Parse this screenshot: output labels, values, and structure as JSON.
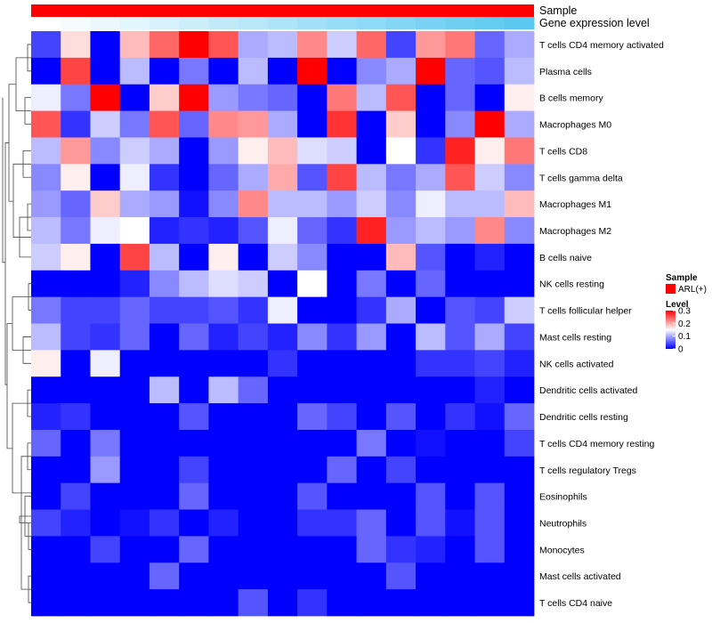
{
  "chart_data": {
    "type": "heatmap",
    "annotation_rows": [
      {
        "label": "Sample",
        "levels": [
          "ARL(+)"
        ],
        "colors": [
          "#ff0000"
        ]
      },
      {
        "label": "Gene expression level",
        "gradient": [
          "#ffffff",
          "#5ac8f0"
        ]
      }
    ],
    "rows": [
      "T cells CD4 memory activated",
      "Plasma cells",
      "B cells memory",
      "Macrophages M0",
      "T cells CD8",
      "T cells gamma delta",
      "Macrophages M1",
      "Macrophages M2",
      "B cells naive",
      "NK cells resting",
      "T cells follicular helper",
      "Mast cells resting",
      "NK cells activated",
      "Dendritic cells activated",
      "Dendritic cells resting",
      "T cells CD4 memory resting",
      "T cells regulatory  Tregs",
      "Eosinophils",
      "Neutrophils",
      "Monocytes",
      "Mast cells activated",
      "T cells CD4 naive"
    ],
    "n_columns": 17,
    "values": [
      [
        0.04,
        0.17,
        0.0,
        0.19,
        0.24,
        0.3,
        0.25,
        0.1,
        0.11,
        0.22,
        0.12,
        0.24,
        0.04,
        0.21,
        0.23,
        0.06,
        0.1
      ],
      [
        0.0,
        0.26,
        0.0,
        0.11,
        0.0,
        0.07,
        0.0,
        0.11,
        0.0,
        0.3,
        0.0,
        0.08,
        0.1,
        0.3,
        0.06,
        0.05,
        0.11
      ],
      [
        0.14,
        0.07,
        0.3,
        0.0,
        0.18,
        0.3,
        0.09,
        0.07,
        0.06,
        0.0,
        0.23,
        0.11,
        0.25,
        0.0,
        0.06,
        0.0,
        0.16
      ],
      [
        0.25,
        0.03,
        0.12,
        0.07,
        0.25,
        0.06,
        0.22,
        0.21,
        0.1,
        0.0,
        0.27,
        0.0,
        0.18,
        0.0,
        0.08,
        0.3,
        0.1
      ],
      [
        0.11,
        0.21,
        0.08,
        0.12,
        0.1,
        0.0,
        0.09,
        0.16,
        0.19,
        0.13,
        0.12,
        0.0,
        0.15,
        0.03,
        0.28,
        0.16,
        0.23
      ],
      [
        0.08,
        0.16,
        0.0,
        0.14,
        0.03,
        0.0,
        0.06,
        0.1,
        0.2,
        0.05,
        0.26,
        0.11,
        0.07,
        0.1,
        0.25,
        0.12,
        0.08
      ],
      [
        0.09,
        0.06,
        0.18,
        0.1,
        0.09,
        0.01,
        0.08,
        0.22,
        0.11,
        0.11,
        0.09,
        0.12,
        0.08,
        0.14,
        0.11,
        0.11,
        0.19
      ],
      [
        0.11,
        0.07,
        0.14,
        0.15,
        0.02,
        0.03,
        0.02,
        0.05,
        0.14,
        0.06,
        0.03,
        0.28,
        0.09,
        0.11,
        0.09,
        0.22,
        0.08
      ],
      [
        0.12,
        0.16,
        0.0,
        0.26,
        0.11,
        0.0,
        0.16,
        0.0,
        0.12,
        0.08,
        0.0,
        0.0,
        0.19,
        0.05,
        0.0,
        0.02,
        0.0
      ],
      [
        0.0,
        0.0,
        0.0,
        0.02,
        0.08,
        0.11,
        0.13,
        0.12,
        0.0,
        0.15,
        0.0,
        0.07,
        0.0,
        0.06,
        0.0,
        0.0,
        0.0
      ],
      [
        0.07,
        0.04,
        0.04,
        0.06,
        0.04,
        0.04,
        0.05,
        0.03,
        0.14,
        0.0,
        0.0,
        0.03,
        0.1,
        0.0,
        0.05,
        0.04,
        0.12
      ],
      [
        0.11,
        0.04,
        0.03,
        0.06,
        0.0,
        0.06,
        0.02,
        0.04,
        0.02,
        0.08,
        0.03,
        0.09,
        0.0,
        0.11,
        0.05,
        0.1,
        0.04
      ],
      [
        0.16,
        0.0,
        0.14,
        0.0,
        0.0,
        0.0,
        0.0,
        0.0,
        0.03,
        0.0,
        0.0,
        0.0,
        0.0,
        0.03,
        0.03,
        0.04,
        0.02
      ],
      [
        0.0,
        0.0,
        0.0,
        0.0,
        0.11,
        0.0,
        0.11,
        0.06,
        0.0,
        0.0,
        0.0,
        0.0,
        0.0,
        0.0,
        0.0,
        0.02,
        0.0
      ],
      [
        0.02,
        0.03,
        0.0,
        0.0,
        0.0,
        0.05,
        0.0,
        0.0,
        0.0,
        0.06,
        0.04,
        0.0,
        0.05,
        0.0,
        0.03,
        0.01,
        0.06
      ],
      [
        0.06,
        0.0,
        0.07,
        0.0,
        0.0,
        0.0,
        0.0,
        0.0,
        0.0,
        0.0,
        0.0,
        0.07,
        0.0,
        0.01,
        0.0,
        0.0,
        0.04
      ],
      [
        0.0,
        0.0,
        0.09,
        0.0,
        0.0,
        0.04,
        0.0,
        0.0,
        0.0,
        0.0,
        0.06,
        0.0,
        0.04,
        0.0,
        0.0,
        0.0,
        0.0
      ],
      [
        0.0,
        0.04,
        0.0,
        0.0,
        0.0,
        0.06,
        0.0,
        0.0,
        0.0,
        0.05,
        0.0,
        0.0,
        0.0,
        0.05,
        0.0,
        0.05,
        0.0
      ],
      [
        0.04,
        0.02,
        0.0,
        0.01,
        0.03,
        0.0,
        0.02,
        0.0,
        0.0,
        0.03,
        0.03,
        0.06,
        0.0,
        0.05,
        0.01,
        0.05,
        0.0
      ],
      [
        0.0,
        0.0,
        0.04,
        0.0,
        0.0,
        0.06,
        0.0,
        0.0,
        0.0,
        0.0,
        0.0,
        0.06,
        0.03,
        0.02,
        0.0,
        0.05,
        0.0
      ],
      [
        0.0,
        0.0,
        0.0,
        0.0,
        0.06,
        0.0,
        0.0,
        0.0,
        0.0,
        0.0,
        0.0,
        0.0,
        0.05,
        0.0,
        0.0,
        0.0,
        0.0
      ],
      [
        0.0,
        0.0,
        0.0,
        0.0,
        0.0,
        0.0,
        0.0,
        0.05,
        0.0,
        0.03,
        0.0,
        0.0,
        0.0,
        0.0,
        0.0,
        0.0,
        0.0
      ]
    ],
    "color_scale": {
      "min": 0,
      "max": 0.3,
      "colors": [
        "#0000ff",
        "#ffffff",
        "#ff0000"
      ]
    },
    "legend": {
      "sample_title": "Sample",
      "sample_entry": "ARL(+)",
      "level_title": "Level",
      "ticks": [
        "0.3",
        "0.2",
        "0.1",
        "0"
      ],
      "tick_values": [
        0.3,
        0.2,
        0.1,
        0
      ],
      "placement": "right"
    },
    "row_dendrogram": true
  }
}
